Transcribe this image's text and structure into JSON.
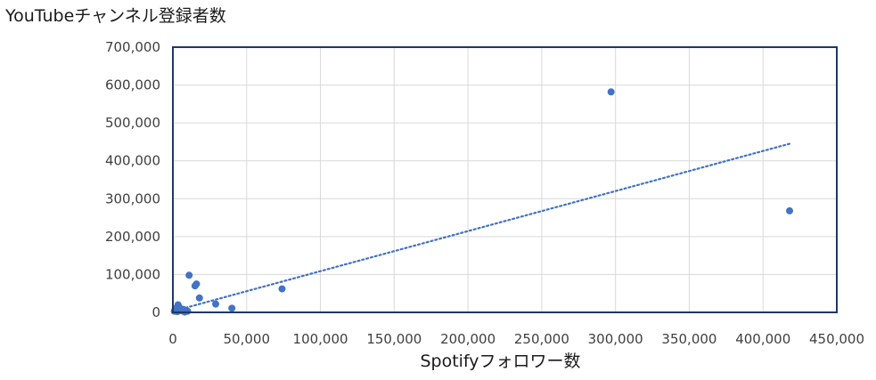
{
  "chart_data": {
    "type": "scatter",
    "title": "",
    "ylabel": "YouTubeチャンネル登録者数",
    "xlabel": "Spotifyフォロワー数",
    "xlim": [
      0,
      450000
    ],
    "ylim": [
      0,
      700000
    ],
    "x_ticks": [
      0,
      50000,
      100000,
      150000,
      200000,
      250000,
      300000,
      350000,
      400000,
      450000
    ],
    "y_ticks": [
      0,
      100000,
      200000,
      300000,
      400000,
      500000,
      600000,
      700000
    ],
    "x_tick_labels": [
      "0",
      "50,000",
      "100,000",
      "150,000",
      "200,000",
      "250,000",
      "300,000",
      "350,000",
      "400,000",
      "450,000"
    ],
    "y_tick_labels": [
      "0",
      "100,000",
      "200,000",
      "300,000",
      "400,000",
      "500,000",
      "600,000",
      "700,000"
    ],
    "grid": true,
    "marker_color": "#4472c4",
    "trendline": {
      "type": "linear",
      "style": "dotted",
      "color": "#4472c4",
      "x": [
        0,
        418000
      ],
      "y": [
        3000,
        445000
      ]
    },
    "points": [
      {
        "x": 1000,
        "y": 3000
      },
      {
        "x": 1500,
        "y": 8000
      },
      {
        "x": 2000,
        "y": 5000
      },
      {
        "x": 2500,
        "y": 12000
      },
      {
        "x": 3000,
        "y": 2000
      },
      {
        "x": 3500,
        "y": 20000
      },
      {
        "x": 4000,
        "y": 15000
      },
      {
        "x": 4500,
        "y": 6000
      },
      {
        "x": 5000,
        "y": 10000
      },
      {
        "x": 6000,
        "y": 4000
      },
      {
        "x": 7000,
        "y": 8000
      },
      {
        "x": 8000,
        "y": 1000
      },
      {
        "x": 9000,
        "y": 5000
      },
      {
        "x": 10000,
        "y": 3000
      },
      {
        "x": 11000,
        "y": 98000
      },
      {
        "x": 15000,
        "y": 70000
      },
      {
        "x": 16000,
        "y": 75000
      },
      {
        "x": 18000,
        "y": 38000
      },
      {
        "x": 29000,
        "y": 22000
      },
      {
        "x": 40000,
        "y": 11000
      },
      {
        "x": 74000,
        "y": 62000
      },
      {
        "x": 297000,
        "y": 582000
      },
      {
        "x": 418000,
        "y": 268000
      }
    ]
  }
}
